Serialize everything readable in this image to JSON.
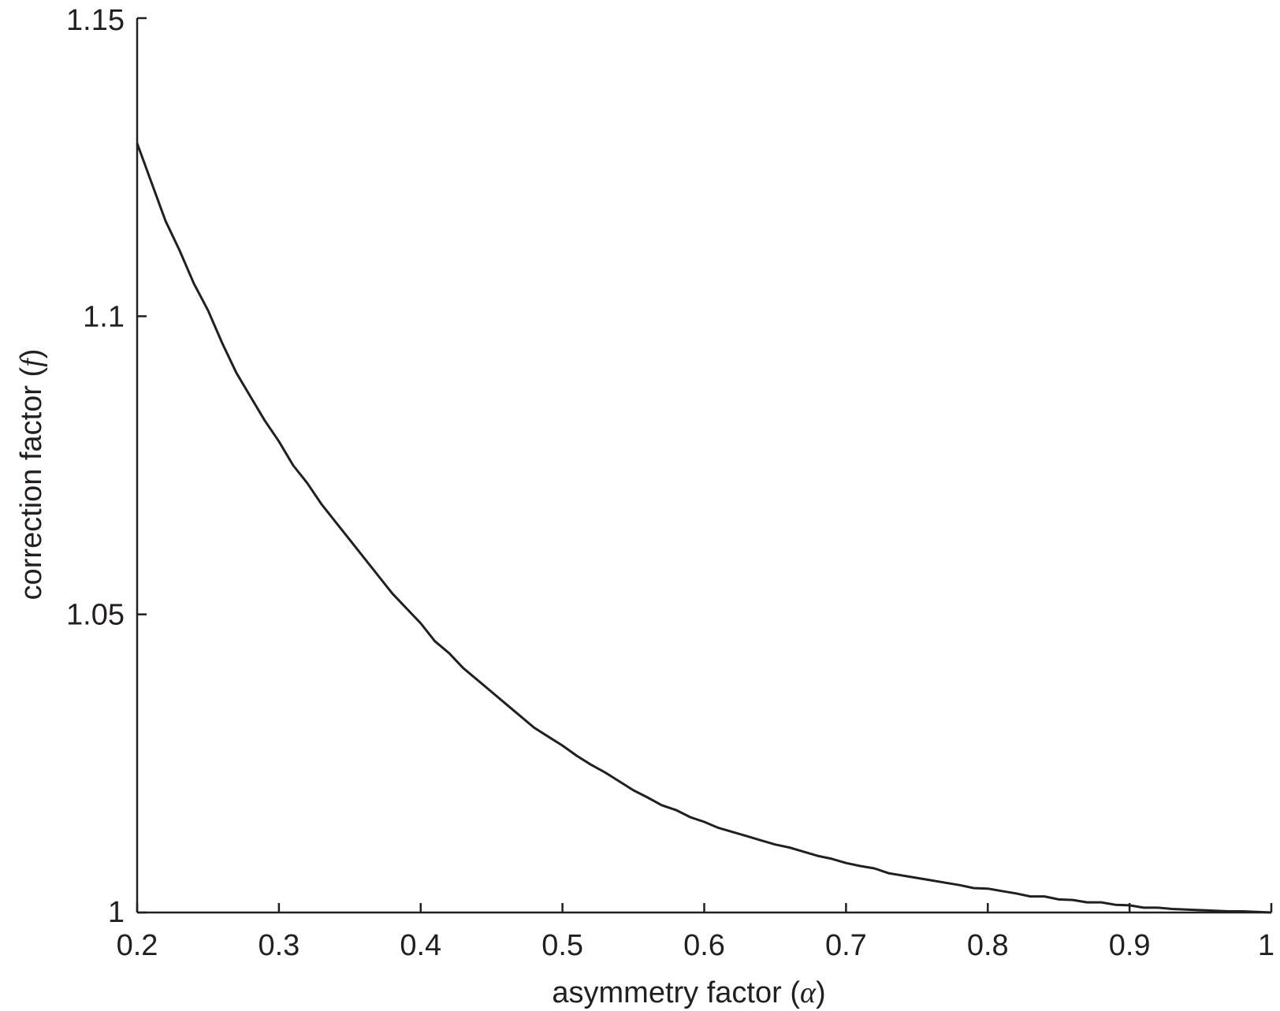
{
  "chart_data": {
    "type": "line",
    "title": "",
    "xlabel": "asymmetry factor (",
    "xlabel_symbol": "α",
    "xlabel_suffix": ")",
    "ylabel": "correction factor (",
    "ylabel_symbol": "f",
    "ylabel_suffix": ")",
    "xlim": [
      0.2,
      1
    ],
    "ylim": [
      1,
      1.15
    ],
    "xticks": [
      0.2,
      0.3,
      0.4,
      0.5,
      0.6,
      0.7,
      0.8,
      0.9,
      1
    ],
    "xtick_labels": [
      "0.2",
      "0.3",
      "0.4",
      "0.5",
      "0.6",
      "0.7",
      "0.8",
      "0.9",
      "1"
    ],
    "yticks": [
      1,
      1.05,
      1.1,
      1.15
    ],
    "ytick_labels": [
      "1",
      "1.05",
      "1.1",
      "1.15"
    ],
    "grid": false,
    "legend": "none",
    "line_color": "#231f20",
    "series": [
      {
        "x": [
          0.2,
          0.21,
          0.22,
          0.23,
          0.24,
          0.25,
          0.26,
          0.27,
          0.28,
          0.29,
          0.3,
          0.31,
          0.32,
          0.33,
          0.34,
          0.35,
          0.36,
          0.37,
          0.38,
          0.39,
          0.4,
          0.41,
          0.42,
          0.43,
          0.44,
          0.45,
          0.46,
          0.47,
          0.48,
          0.49,
          0.5,
          0.51,
          0.52,
          0.53,
          0.54,
          0.55,
          0.56,
          0.57,
          0.58,
          0.59,
          0.6,
          0.61,
          0.62,
          0.63,
          0.64,
          0.65,
          0.66,
          0.67,
          0.68,
          0.69,
          0.7,
          0.71,
          0.72,
          0.73,
          0.74,
          0.75,
          0.76,
          0.77,
          0.78,
          0.79,
          0.8,
          0.81,
          0.82,
          0.83,
          0.84,
          0.85,
          0.86,
          0.87,
          0.88,
          0.89,
          0.9,
          0.91,
          0.92,
          0.93,
          0.94,
          0.95,
          0.96,
          0.97,
          0.98,
          0.99,
          1.0
        ],
        "values": [
          1.129,
          1.1225,
          1.116,
          1.111,
          1.1055,
          1.101,
          1.0955,
          1.0905,
          1.0865,
          1.0825,
          1.079,
          1.075,
          1.072,
          1.0685,
          1.0655,
          1.0625,
          1.0595,
          1.0565,
          1.0535,
          1.051,
          1.0485,
          1.0455,
          1.0435,
          1.041,
          1.039,
          1.037,
          1.035,
          1.033,
          1.031,
          1.0295,
          1.028,
          1.0263,
          1.0248,
          1.0235,
          1.022,
          1.0205,
          1.0193,
          1.018,
          1.0172,
          1.016,
          1.0152,
          1.0142,
          1.0135,
          1.0128,
          1.0121,
          1.0114,
          1.0109,
          1.0102,
          1.0095,
          1.009,
          1.0083,
          1.0078,
          1.0074,
          1.0066,
          1.0062,
          1.0058,
          1.0054,
          1.005,
          1.0046,
          1.0041,
          1.004,
          1.0036,
          1.0032,
          1.0027,
          1.0027,
          1.0022,
          1.0021,
          1.0017,
          1.0017,
          1.0013,
          1.0012,
          1.0008,
          1.0008,
          1.0006,
          1.0005,
          1.0004,
          1.0003,
          1.0002,
          1.0002,
          1.0001,
          1.0
        ]
      }
    ]
  }
}
